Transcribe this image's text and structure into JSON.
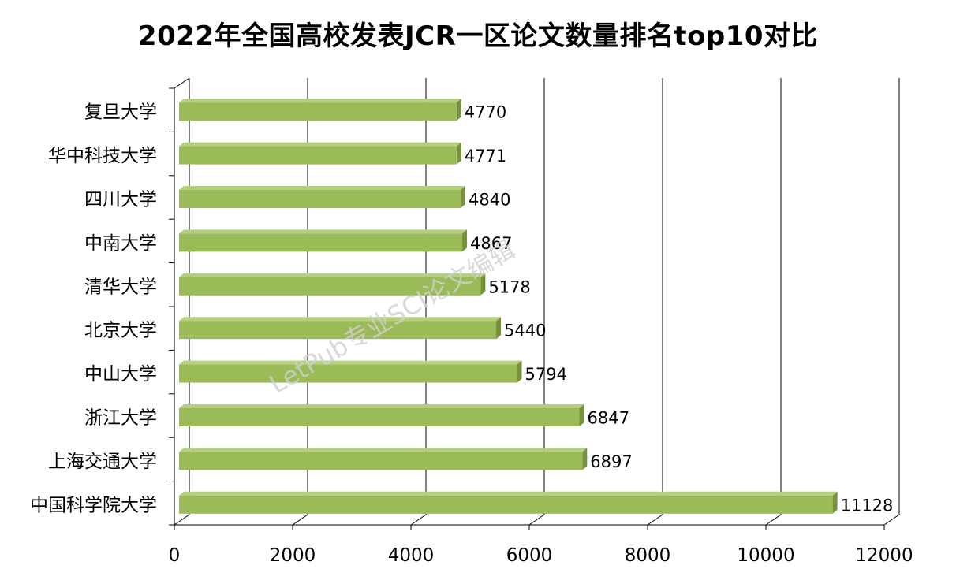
{
  "chart_data": {
    "type": "bar",
    "orientation": "horizontal",
    "title": "2022年全国高校发表JCR一区论文数量排名top10对比",
    "categories": [
      "复旦大学",
      "华中科技大学",
      "四川大学",
      "中南大学",
      "清华大学",
      "北京大学",
      "中山大学",
      "浙江大学",
      "上海交通大学",
      "中国科学院大学"
    ],
    "values": [
      4770,
      4771,
      4840,
      4867,
      5178,
      5440,
      5794,
      6847,
      6897,
      11128
    ],
    "xlim": [
      0,
      12000
    ],
    "xticks": [
      "0",
      "2000",
      "4000",
      "6000",
      "8000",
      "10000",
      "12000"
    ],
    "grid": true,
    "legend": "none",
    "bar_color": "#9bbb59",
    "bar_side_color": "#76923c",
    "bar_top_color": "#b5cf80",
    "watermark": "LetPub专业SCI论文编辑"
  }
}
